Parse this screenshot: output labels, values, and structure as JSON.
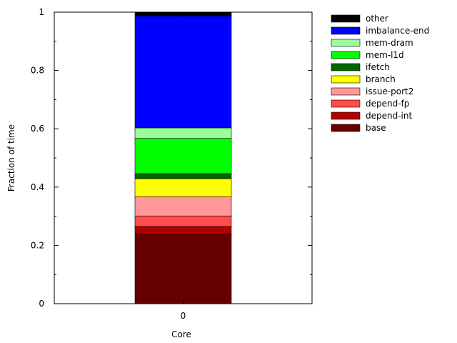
{
  "chart_data": {
    "type": "bar",
    "stacked": true,
    "title": "",
    "xlabel": "Core",
    "ylabel": "Fraction of time",
    "categories": [
      "0"
    ],
    "ylim": [
      0,
      1
    ],
    "yticks": [
      0,
      0.2,
      0.4,
      0.6,
      0.8,
      1
    ],
    "yticks_labels": [
      "0",
      "0.2",
      "0.4",
      "0.6",
      "0.8",
      "1"
    ],
    "grid": false,
    "legend_position": "right",
    "series": [
      {
        "name": "base",
        "color": "#660000",
        "values": [
          0.24
        ]
      },
      {
        "name": "depend-int",
        "color": "#b30000",
        "values": [
          0.025
        ]
      },
      {
        "name": "depend-fp",
        "color": "#ff4c4c",
        "values": [
          0.036
        ]
      },
      {
        "name": "issue-port2",
        "color": "#ff9999",
        "values": [
          0.066
        ]
      },
      {
        "name": "branch",
        "color": "#ffff00",
        "values": [
          0.062
        ]
      },
      {
        "name": "ifetch",
        "color": "#006600",
        "values": [
          0.017
        ]
      },
      {
        "name": "mem-l1d",
        "color": "#00ff00",
        "values": [
          0.121
        ]
      },
      {
        "name": "mem-dram",
        "color": "#99ff99",
        "values": [
          0.036
        ]
      },
      {
        "name": "imbalance-end",
        "color": "#0000ff",
        "values": [
          0.384
        ]
      },
      {
        "name": "other",
        "color": "#000000",
        "values": [
          0.013
        ]
      }
    ]
  }
}
